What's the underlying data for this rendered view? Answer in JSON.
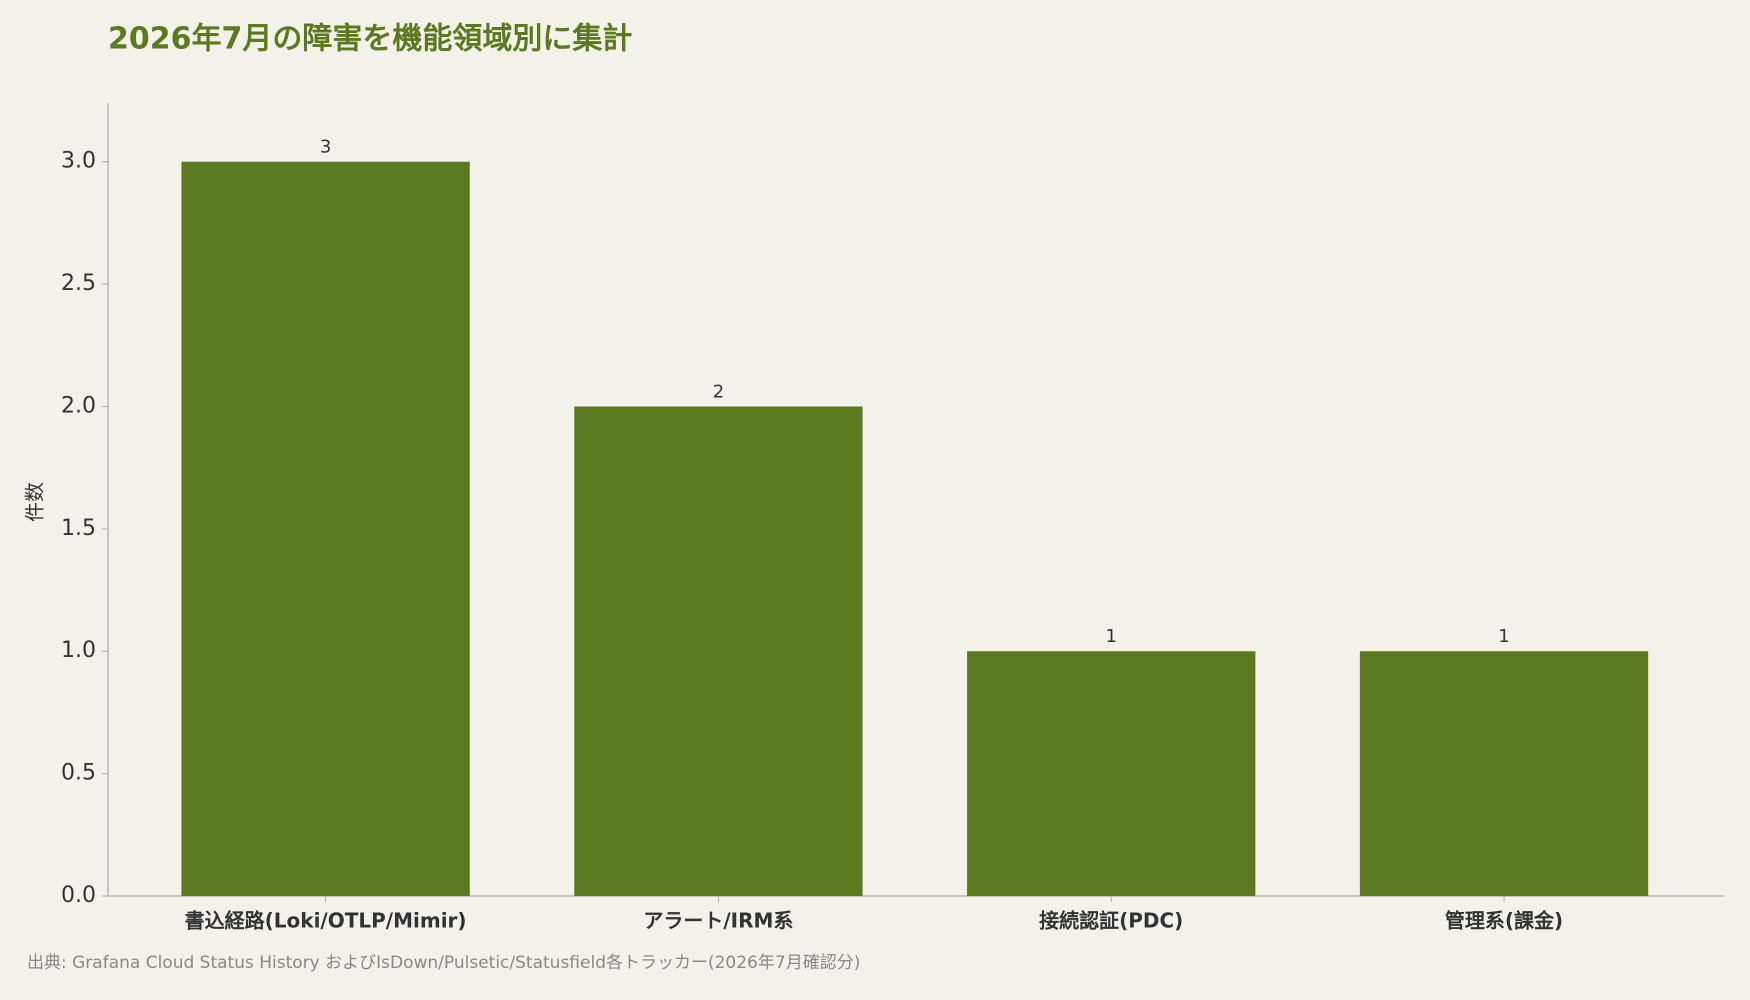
{
  "chart_data": {
    "type": "bar",
    "title": "2026年7月の障害を機能領域別に集計",
    "y_label": "件数",
    "source": "出典: Grafana Cloud Status History およびIsDown/Pulsetic/Statusfield各トラッカー(2026年7月確認分)",
    "categories": [
      "書込経路(Loki/OTLP/Mimir)",
      "アラート/IRM系",
      "接続認証(PDC)",
      "管理系(課金)"
    ],
    "values": [
      3,
      2,
      1,
      1
    ],
    "color": "#5b7a1f",
    "ylim": [
      0,
      3.24
    ],
    "yticks": [
      {
        "value": 0,
        "label": "0.0"
      },
      {
        "value": 0.5,
        "label": "0.5"
      },
      {
        "value": 1,
        "label": "1.0"
      },
      {
        "value": 1.5,
        "label": "1.5"
      },
      {
        "value": 2,
        "label": "2.0"
      },
      {
        "value": 2.5,
        "label": "2.5"
      },
      {
        "value": 3,
        "label": "3.0"
      }
    ],
    "grid": false
  }
}
